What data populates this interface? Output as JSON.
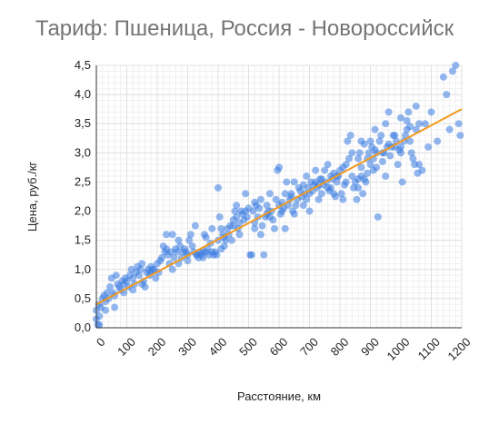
{
  "chart_data": {
    "type": "scatter",
    "title": "Тариф: Пшеница, Россия - Новороссийск",
    "xlabel": "Расстояние, км",
    "ylabel": "Цена, руб./кг",
    "xlim": [
      0,
      1200
    ],
    "ylim": [
      0,
      4.5
    ],
    "x_ticks": [
      0,
      100,
      200,
      300,
      400,
      500,
      600,
      700,
      800,
      900,
      1000,
      1100,
      1200
    ],
    "x_tick_labels": [
      "0",
      "100",
      "200",
      "300",
      "400",
      "500",
      "600",
      "700",
      "800",
      "900",
      "1000",
      "1100",
      "1200"
    ],
    "y_ticks": [
      0,
      0.5,
      1.0,
      1.5,
      2.0,
      2.5,
      3.0,
      3.5,
      4.0,
      4.5
    ],
    "y_tick_labels": [
      "0,0",
      "0,5",
      "1,0",
      "1,5",
      "2,0",
      "2,5",
      "3,0",
      "3,5",
      "4,0",
      "4,5"
    ],
    "grid": true,
    "minor_grid_per_major": 5,
    "colors": {
      "points": "#3b7be0",
      "trend": "#f29a1f",
      "grid": "#e0e0e0",
      "title": "#757575"
    },
    "trendline": {
      "type": "linear",
      "x": [
        0,
        1200
      ],
      "y": [
        0.4,
        3.75
      ]
    },
    "series": [
      {
        "points": [
          [
            0,
            0.15
          ],
          [
            0,
            0.3
          ],
          [
            5,
            0.05
          ],
          [
            10,
            0.2
          ],
          [
            8,
            0.4
          ],
          [
            15,
            0.35
          ],
          [
            20,
            0.5
          ],
          [
            25,
            0.55
          ],
          [
            30,
            0.45
          ],
          [
            35,
            0.6
          ],
          [
            40,
            0.5
          ],
          [
            45,
            0.7
          ],
          [
            50,
            0.85
          ],
          [
            55,
            0.6
          ],
          [
            60,
            0.55
          ],
          [
            65,
            0.9
          ],
          [
            70,
            0.75
          ],
          [
            75,
            0.7
          ],
          [
            80,
            0.65
          ],
          [
            85,
            0.8
          ],
          [
            90,
            0.75
          ],
          [
            95,
            0.85
          ],
          [
            100,
            0.8
          ],
          [
            105,
            0.7
          ],
          [
            110,
            0.9
          ],
          [
            115,
            1.0
          ],
          [
            120,
            0.85
          ],
          [
            125,
            0.75
          ],
          [
            130,
            0.95
          ],
          [
            135,
            1.05
          ],
          [
            140,
            0.9
          ],
          [
            145,
            1.0
          ],
          [
            150,
            1.1
          ],
          [
            155,
            0.8
          ],
          [
            160,
            0.7
          ],
          [
            165,
            0.95
          ],
          [
            170,
            1.0
          ],
          [
            175,
            0.9
          ],
          [
            180,
            1.05
          ],
          [
            185,
            1.0
          ],
          [
            190,
            1.0
          ],
          [
            195,
            0.85
          ],
          [
            200,
            1.1
          ],
          [
            205,
            0.95
          ],
          [
            210,
            1.15
          ],
          [
            215,
            1.2
          ],
          [
            220,
            1.4
          ],
          [
            225,
            1.3
          ],
          [
            230,
            1.6
          ],
          [
            235,
            1.25
          ],
          [
            240,
            1.1
          ],
          [
            245,
            1.3
          ],
          [
            250,
            1.6
          ],
          [
            255,
            1.2
          ],
          [
            260,
            1.35
          ],
          [
            265,
            1.3
          ],
          [
            270,
            1.5
          ],
          [
            275,
            1.4
          ],
          [
            280,
            1.2
          ],
          [
            285,
            1.3
          ],
          [
            290,
            1.35
          ],
          [
            295,
            1.3
          ],
          [
            300,
            1.25
          ],
          [
            305,
            1.5
          ],
          [
            310,
            1.6
          ],
          [
            315,
            1.4
          ],
          [
            320,
            1.3
          ],
          [
            325,
            1.75
          ],
          [
            330,
            1.25
          ],
          [
            335,
            1.2
          ],
          [
            340,
            1.3
          ],
          [
            345,
            1.25
          ],
          [
            350,
            1.3
          ],
          [
            355,
            1.6
          ],
          [
            360,
            1.3
          ],
          [
            365,
            1.35
          ],
          [
            370,
            1.25
          ],
          [
            375,
            1.45
          ],
          [
            380,
            1.7
          ],
          [
            385,
            1.25
          ],
          [
            390,
            1.3
          ],
          [
            395,
            1.25
          ],
          [
            400,
            1.5
          ],
          [
            405,
            1.9
          ],
          [
            400,
            2.4
          ],
          [
            410,
            1.35
          ],
          [
            415,
            1.6
          ],
          [
            420,
            1.55
          ],
          [
            425,
            1.5
          ],
          [
            430,
            1.7
          ],
          [
            435,
            1.6
          ],
          [
            440,
            1.75
          ],
          [
            445,
            1.5
          ],
          [
            450,
            1.75
          ],
          [
            455,
            2.0
          ],
          [
            460,
            1.9
          ],
          [
            465,
            1.7
          ],
          [
            470,
            1.8
          ],
          [
            475,
            2.0
          ],
          [
            480,
            1.95
          ],
          [
            485,
            1.85
          ],
          [
            490,
            2.0
          ],
          [
            495,
            1.9
          ],
          [
            500,
            2.05
          ],
          [
            505,
            1.25
          ],
          [
            510,
            1.25
          ],
          [
            515,
            2.0
          ],
          [
            520,
            1.8
          ],
          [
            525,
            2.1
          ],
          [
            530,
            1.9
          ],
          [
            535,
            2.05
          ],
          [
            540,
            2.2
          ],
          [
            545,
            1.75
          ],
          [
            550,
            1.25
          ],
          [
            555,
            1.9
          ],
          [
            560,
            1.95
          ],
          [
            565,
            2.0
          ],
          [
            570,
            2.3
          ],
          [
            575,
            2.0
          ],
          [
            580,
            1.85
          ],
          [
            585,
            1.7
          ],
          [
            590,
            2.2
          ],
          [
            595,
            2.7
          ],
          [
            600,
            2.1
          ],
          [
            605,
            1.95
          ],
          [
            610,
            2.0
          ],
          [
            615,
            2.05
          ],
          [
            620,
            2.3
          ],
          [
            625,
            2.5
          ],
          [
            630,
            2.1
          ],
          [
            635,
            2.2
          ],
          [
            640,
            2.25
          ],
          [
            645,
            2.0
          ],
          [
            650,
            1.95
          ],
          [
            655,
            2.1
          ],
          [
            660,
            2.2
          ],
          [
            665,
            2.4
          ],
          [
            670,
            2.35
          ],
          [
            675,
            2.25
          ],
          [
            680,
            2.1
          ],
          [
            685,
            2.3
          ],
          [
            690,
            2.2
          ],
          [
            695,
            2.4
          ],
          [
            700,
            2.3
          ],
          [
            705,
            2.5
          ],
          [
            710,
            2.35
          ],
          [
            715,
            2.45
          ],
          [
            720,
            2.7
          ],
          [
            725,
            2.4
          ],
          [
            730,
            2.2
          ],
          [
            735,
            2.55
          ],
          [
            740,
            2.3
          ],
          [
            745,
            2.45
          ],
          [
            750,
            2.7
          ],
          [
            755,
            2.5
          ],
          [
            760,
            2.4
          ],
          [
            765,
            2.35
          ],
          [
            770,
            2.6
          ],
          [
            775,
            2.55
          ],
          [
            780,
            2.3
          ],
          [
            785,
            2.25
          ],
          [
            790,
            2.5
          ],
          [
            795,
            2.6
          ],
          [
            800,
            2.7
          ],
          [
            805,
            2.3
          ],
          [
            810,
            2.2
          ],
          [
            815,
            2.45
          ],
          [
            820,
            2.8
          ],
          [
            825,
            3.2
          ],
          [
            830,
            2.9
          ],
          [
            835,
            3.3
          ],
          [
            840,
            2.6
          ],
          [
            845,
            2.4
          ],
          [
            850,
            2.5
          ],
          [
            855,
            2.2
          ],
          [
            860,
            2.55
          ],
          [
            865,
            3.0
          ],
          [
            870,
            2.75
          ],
          [
            875,
            2.3
          ],
          [
            880,
            3.15
          ],
          [
            885,
            2.5
          ],
          [
            890,
            2.65
          ],
          [
            895,
            3.0
          ],
          [
            900,
            2.8
          ],
          [
            905,
            3.1
          ],
          [
            910,
            2.9
          ],
          [
            915,
            3.05
          ],
          [
            920,
            2.75
          ],
          [
            925,
            1.9
          ],
          [
            930,
            3.2
          ],
          [
            935,
            3.3
          ],
          [
            940,
            2.85
          ],
          [
            945,
            3.0
          ],
          [
            950,
            3.5
          ],
          [
            955,
            3.1
          ],
          [
            960,
            3.15
          ],
          [
            965,
            2.95
          ],
          [
            970,
            3.1
          ],
          [
            975,
            3.3
          ],
          [
            980,
            3.1
          ],
          [
            985,
            3.2
          ],
          [
            990,
            2.8
          ],
          [
            995,
            3.05
          ],
          [
            1000,
            3.1
          ],
          [
            1005,
            2.5
          ],
          [
            1010,
            3.2
          ],
          [
            1015,
            3.3
          ],
          [
            1020,
            3.55
          ],
          [
            1025,
            3.7
          ],
          [
            1030,
            3.2
          ],
          [
            1035,
            3.0
          ],
          [
            1040,
            2.9
          ],
          [
            1045,
            2.8
          ],
          [
            1050,
            3.4
          ],
          [
            1055,
            2.65
          ],
          [
            1060,
            2.8
          ],
          [
            1070,
            2.7
          ],
          [
            1080,
            3.5
          ],
          [
            1090,
            3.1
          ],
          [
            1100,
            3.7
          ],
          [
            1120,
            3.2
          ],
          [
            1140,
            4.3
          ],
          [
            1150,
            4.0
          ],
          [
            1160,
            3.4
          ],
          [
            1170,
            4.4
          ],
          [
            1180,
            4.5
          ],
          [
            1190,
            3.5
          ],
          [
            1195,
            3.3
          ],
          [
            870,
            3.2
          ],
          [
            890,
            2.9
          ],
          [
            915,
            3.4
          ],
          [
            960,
            3.7
          ],
          [
            1000,
            3.6
          ],
          [
            1050,
            3.8
          ],
          [
            790,
            2.6
          ],
          [
            760,
            2.8
          ],
          [
            700,
            2.0
          ],
          [
            620,
            1.7
          ],
          [
            600,
            2.75
          ],
          [
            450,
            1.85
          ],
          [
            380,
            1.3
          ],
          [
            330,
            1.25
          ],
          [
            350,
            1.2
          ],
          [
            420,
            1.4
          ],
          [
            470,
            1.6
          ],
          [
            520,
            2.15
          ],
          [
            560,
            2.1
          ],
          [
            640,
            2.3
          ],
          [
            680,
            2.45
          ],
          [
            720,
            2.5
          ],
          [
            740,
            2.55
          ],
          [
            780,
            2.65
          ],
          [
            820,
            2.5
          ],
          [
            860,
            2.9
          ],
          [
            900,
            3.2
          ],
          [
            940,
            3.0
          ],
          [
            980,
            3.3
          ],
          [
            1020,
            3.4
          ],
          [
            1060,
            3.5
          ],
          [
            250,
            1.0
          ],
          [
            270,
            1.1
          ],
          [
            300,
            1.15
          ],
          [
            180,
            0.95
          ],
          [
            150,
            0.75
          ],
          [
            120,
            0.65
          ],
          [
            90,
            0.6
          ],
          [
            60,
            0.35
          ],
          [
            30,
            0.3
          ],
          [
            10,
            0.05
          ],
          [
            520,
            1.7
          ],
          [
            540,
            1.6
          ],
          [
            860,
            2.4
          ],
          [
            880,
            2.55
          ],
          [
            920,
            3.0
          ],
          [
            950,
            2.6
          ],
          [
            1000,
            3.0
          ],
          [
            1030,
            3.45
          ],
          [
            230,
            1.35
          ],
          [
            360,
            1.55
          ],
          [
            410,
            1.7
          ],
          [
            460,
            2.1
          ],
          [
            490,
            2.3
          ],
          [
            570,
            1.9
          ],
          [
            610,
            2.15
          ],
          [
            650,
            2.5
          ],
          [
            690,
            2.6
          ],
          [
            730,
            2.45
          ],
          [
            770,
            2.4
          ],
          [
            810,
            2.75
          ],
          [
            840,
            3.0
          ],
          [
            870,
            2.6
          ],
          [
            910,
            2.7
          ]
        ]
      }
    ]
  }
}
